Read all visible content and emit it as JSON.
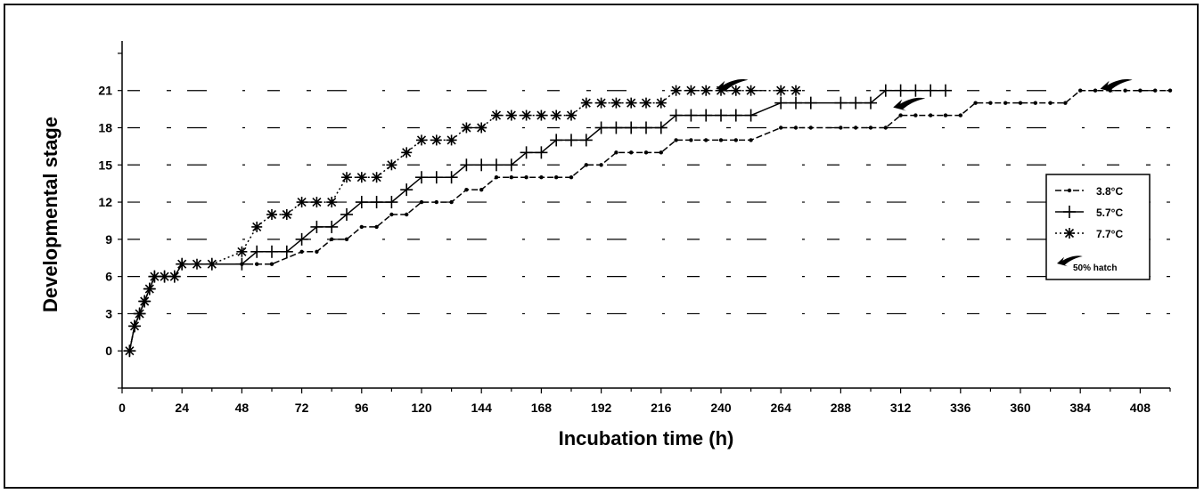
{
  "chart_data": {
    "type": "line",
    "title": "",
    "xlabel": "Incubation time (h)",
    "ylabel": "Developmental stage",
    "xlim": [
      0,
      420
    ],
    "ylim": [
      -3,
      25
    ],
    "x_ticks": [
      "0",
      "24",
      "48",
      "72",
      "96",
      "120",
      "144",
      "168",
      "192",
      "216",
      "240",
      "264",
      "288",
      "312",
      "336",
      "360",
      "384",
      "408"
    ],
    "y_ticks": [
      "0",
      "3",
      "6",
      "9",
      "12",
      "15",
      "18",
      "21"
    ],
    "grid": "dashed horizontal",
    "legend_position": "right",
    "series": [
      {
        "name": "3.8°C",
        "marker": "dot",
        "color": "#000000",
        "style": "dashed",
        "points": [
          [
            3,
            0
          ],
          [
            5,
            2
          ],
          [
            7,
            3
          ],
          [
            9,
            4
          ],
          [
            11,
            5
          ],
          [
            13,
            6
          ],
          [
            17,
            6
          ],
          [
            21,
            6
          ],
          [
            24,
            7
          ],
          [
            36,
            7
          ],
          [
            48,
            7
          ],
          [
            54,
            7
          ],
          [
            60,
            7
          ],
          [
            72,
            8
          ],
          [
            78,
            8
          ],
          [
            84,
            9
          ],
          [
            90,
            9
          ],
          [
            96,
            10
          ],
          [
            102,
            10
          ],
          [
            108,
            11
          ],
          [
            114,
            11
          ],
          [
            120,
            12
          ],
          [
            126,
            12
          ],
          [
            132,
            12
          ],
          [
            138,
            13
          ],
          [
            144,
            13
          ],
          [
            150,
            14
          ],
          [
            156,
            14
          ],
          [
            162,
            14
          ],
          [
            168,
            14
          ],
          [
            174,
            14
          ],
          [
            180,
            14
          ],
          [
            186,
            15
          ],
          [
            192,
            15
          ],
          [
            198,
            16
          ],
          [
            204,
            16
          ],
          [
            210,
            16
          ],
          [
            216,
            16
          ],
          [
            222,
            17
          ],
          [
            228,
            17
          ],
          [
            234,
            17
          ],
          [
            240,
            17
          ],
          [
            246,
            17
          ],
          [
            252,
            17
          ],
          [
            264,
            18
          ],
          [
            270,
            18
          ],
          [
            276,
            18
          ],
          [
            288,
            18
          ],
          [
            294,
            18
          ],
          [
            300,
            18
          ],
          [
            306,
            18
          ],
          [
            312,
            19
          ],
          [
            318,
            19
          ],
          [
            324,
            19
          ],
          [
            330,
            19
          ],
          [
            336,
            19
          ],
          [
            342,
            20
          ],
          [
            348,
            20
          ],
          [
            354,
            20
          ],
          [
            360,
            20
          ],
          [
            366,
            20
          ],
          [
            372,
            20
          ],
          [
            378,
            20
          ],
          [
            384,
            21
          ],
          [
            390,
            21
          ],
          [
            396,
            21
          ],
          [
            402,
            21
          ],
          [
            408,
            21
          ],
          [
            414,
            21
          ],
          [
            420,
            21
          ]
        ]
      },
      {
        "name": "5.7°C",
        "marker": "plus",
        "color": "#000000",
        "style": "solid",
        "points": [
          [
            3,
            0
          ],
          [
            5,
            2
          ],
          [
            7,
            3
          ],
          [
            9,
            4
          ],
          [
            11,
            5
          ],
          [
            13,
            6
          ],
          [
            17,
            6
          ],
          [
            21,
            6
          ],
          [
            24,
            7
          ],
          [
            36,
            7
          ],
          [
            48,
            7
          ],
          [
            54,
            8
          ],
          [
            60,
            8
          ],
          [
            66,
            8
          ],
          [
            72,
            9
          ],
          [
            78,
            10
          ],
          [
            84,
            10
          ],
          [
            90,
            11
          ],
          [
            96,
            12
          ],
          [
            102,
            12
          ],
          [
            108,
            12
          ],
          [
            114,
            13
          ],
          [
            120,
            14
          ],
          [
            126,
            14
          ],
          [
            132,
            14
          ],
          [
            138,
            15
          ],
          [
            144,
            15
          ],
          [
            150,
            15
          ],
          [
            156,
            15
          ],
          [
            162,
            16
          ],
          [
            168,
            16
          ],
          [
            174,
            17
          ],
          [
            180,
            17
          ],
          [
            186,
            17
          ],
          [
            192,
            18
          ],
          [
            198,
            18
          ],
          [
            204,
            18
          ],
          [
            210,
            18
          ],
          [
            216,
            18
          ],
          [
            222,
            19
          ],
          [
            228,
            19
          ],
          [
            234,
            19
          ],
          [
            240,
            19
          ],
          [
            246,
            19
          ],
          [
            252,
            19
          ],
          [
            264,
            20
          ],
          [
            270,
            20
          ],
          [
            276,
            20
          ],
          [
            288,
            20
          ],
          [
            294,
            20
          ],
          [
            300,
            20
          ],
          [
            306,
            21
          ],
          [
            312,
            21
          ],
          [
            318,
            21
          ],
          [
            324,
            21
          ],
          [
            330,
            21
          ]
        ]
      },
      {
        "name": "7.7°C",
        "marker": "asterisk",
        "color": "#000000",
        "style": "dotted",
        "points": [
          [
            3,
            0
          ],
          [
            5,
            2
          ],
          [
            7,
            3
          ],
          [
            9,
            4
          ],
          [
            11,
            5
          ],
          [
            13,
            6
          ],
          [
            17,
            6
          ],
          [
            21,
            6
          ],
          [
            24,
            7
          ],
          [
            30,
            7
          ],
          [
            36,
            7
          ],
          [
            48,
            8
          ],
          [
            54,
            10
          ],
          [
            60,
            11
          ],
          [
            66,
            11
          ],
          [
            72,
            12
          ],
          [
            78,
            12
          ],
          [
            84,
            12
          ],
          [
            90,
            14
          ],
          [
            96,
            14
          ],
          [
            102,
            14
          ],
          [
            108,
            15
          ],
          [
            114,
            16
          ],
          [
            120,
            17
          ],
          [
            126,
            17
          ],
          [
            132,
            17
          ],
          [
            138,
            18
          ],
          [
            144,
            18
          ],
          [
            150,
            19
          ],
          [
            156,
            19
          ],
          [
            162,
            19
          ],
          [
            168,
            19
          ],
          [
            174,
            19
          ],
          [
            180,
            19
          ],
          [
            186,
            20
          ],
          [
            192,
            20
          ],
          [
            198,
            20
          ],
          [
            204,
            20
          ],
          [
            210,
            20
          ],
          [
            216,
            20
          ],
          [
            222,
            21
          ],
          [
            228,
            21
          ],
          [
            234,
            21
          ],
          [
            240,
            21
          ],
          [
            246,
            21
          ],
          [
            252,
            21
          ],
          [
            264,
            21
          ],
          [
            270,
            21
          ]
        ]
      }
    ],
    "annotations": [
      {
        "label": "50% hatch",
        "x": 238,
        "y": 21,
        "icon": "arrow-icon"
      },
      {
        "label": "50% hatch",
        "x": 309,
        "y": 19.5,
        "icon": "arrow-icon"
      },
      {
        "label": "50% hatch",
        "x": 392,
        "y": 21,
        "icon": "arrow-icon"
      }
    ],
    "legend": {
      "items": [
        "3.8°C",
        "5.7°C",
        "7.7°C"
      ],
      "hatch_label": "50% hatch"
    }
  }
}
